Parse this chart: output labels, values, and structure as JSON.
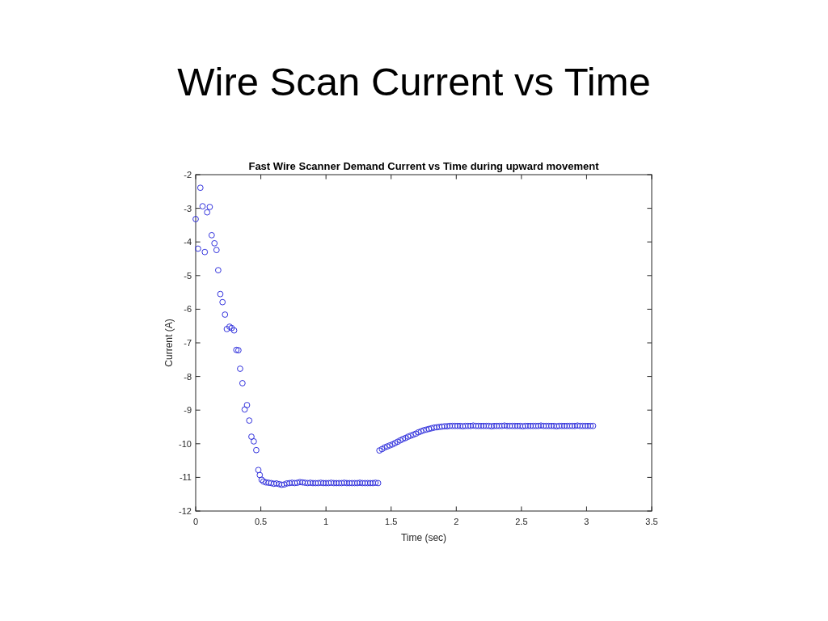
{
  "chart_data": {
    "type": "scatter",
    "title": "Wire Scan Current vs Time",
    "subtitle": "Fast Wire Scanner Demand Current vs Time during upward movement",
    "xlabel": "Time (sec)",
    "ylabel": "Current (A)",
    "xlim": [
      0,
      3.5
    ],
    "xticks": [
      0,
      0.5,
      1,
      1.5,
      2,
      2.5,
      3,
      3.5
    ],
    "ylim": [
      -12,
      -2
    ],
    "yticks": [
      -12,
      -11,
      -10,
      -9,
      -8,
      -7,
      -6,
      -5,
      -4,
      -3,
      -2
    ],
    "marker": "circle",
    "series": [
      {
        "color": "#3333dd",
        "x": [
          0,
          0.018,
          0.036,
          0.053,
          0.07,
          0.088,
          0.108,
          0.123,
          0.144,
          0.16,
          0.173,
          0.189,
          0.206,
          0.225,
          0.239,
          0.26,
          0.276,
          0.295,
          0.312,
          0.328,
          0.341,
          0.359,
          0.376,
          0.394,
          0.411,
          0.428,
          0.446,
          0.465,
          0.481,
          0.492,
          0.506,
          0.52,
          0.54,
          0.56,
          0.58,
          0.6,
          0.62,
          0.64,
          0.66,
          0.68,
          0.7,
          0.72,
          0.74,
          0.76,
          0.78,
          0.8,
          0.82,
          0.84,
          0.86,
          0.88,
          0.9,
          0.92,
          0.94,
          0.96,
          0.98,
          1,
          1.02,
          1.04,
          1.06,
          1.08,
          1.1,
          1.12,
          1.14,
          1.16,
          1.18,
          1.2,
          1.22,
          1.24,
          1.26,
          1.28,
          1.3,
          1.32,
          1.34,
          1.36,
          1.38,
          1.4,
          1.41,
          1.43,
          1.45,
          1.47,
          1.49,
          1.51,
          1.53,
          1.55,
          1.57,
          1.59,
          1.61,
          1.63,
          1.65,
          1.67,
          1.69,
          1.71,
          1.73,
          1.75,
          1.77,
          1.79,
          1.81,
          1.83,
          1.85,
          1.87,
          1.89,
          1.91,
          1.93,
          1.95,
          1.97,
          1.99,
          2.01,
          2.03,
          2.05,
          2.07,
          2.09,
          2.11,
          2.13,
          2.15,
          2.17,
          2.19,
          2.21,
          2.23,
          2.25,
          2.27,
          2.29,
          2.31,
          2.33,
          2.35,
          2.37,
          2.39,
          2.41,
          2.43,
          2.45,
          2.47,
          2.49,
          2.51,
          2.53,
          2.55,
          2.57,
          2.59,
          2.61,
          2.63,
          2.65,
          2.67,
          2.69,
          2.71,
          2.73,
          2.75,
          2.77,
          2.79,
          2.81,
          2.83,
          2.85,
          2.87,
          2.89,
          2.91,
          2.93,
          2.95,
          2.97,
          2.99,
          3.01,
          3.03,
          3.05
        ],
        "values": [
          -3.32,
          -4.2,
          -2.39,
          -2.94,
          -4.3,
          -3.12,
          -2.96,
          -3.8,
          -4.04,
          -4.24,
          -4.84,
          -5.55,
          -5.79,
          -6.16,
          -6.59,
          -6.52,
          -6.56,
          -6.63,
          -7.21,
          -7.22,
          -7.77,
          -8.2,
          -8.98,
          -8.85,
          -9.31,
          -9.79,
          -9.93,
          -10.19,
          -10.78,
          -10.93,
          -11.07,
          -11.12,
          -11.15,
          -11.16,
          -11.17,
          -11.19,
          -11.18,
          -11.2,
          -11.22,
          -11.21,
          -11.18,
          -11.17,
          -11.16,
          -11.17,
          -11.16,
          -11.14,
          -11.15,
          -11.16,
          -11.17,
          -11.16,
          -11.17,
          -11.17,
          -11.17,
          -11.16,
          -11.17,
          -11.17,
          -11.17,
          -11.16,
          -11.17,
          -11.17,
          -11.17,
          -11.17,
          -11.16,
          -11.17,
          -11.17,
          -11.17,
          -11.17,
          -11.17,
          -11.16,
          -11.17,
          -11.17,
          -11.17,
          -11.17,
          -11.17,
          -11.16,
          -11.17,
          -10.2,
          -10.16,
          -10.11,
          -10.08,
          -10.05,
          -10.02,
          -9.98,
          -9.94,
          -9.9,
          -9.86,
          -9.83,
          -9.79,
          -9.76,
          -9.73,
          -9.7,
          -9.66,
          -9.63,
          -9.6,
          -9.58,
          -9.56,
          -9.54,
          -9.52,
          -9.51,
          -9.5,
          -9.49,
          -9.48,
          -9.48,
          -9.47,
          -9.47,
          -9.47,
          -9.47,
          -9.47,
          -9.48,
          -9.47,
          -9.47,
          -9.47,
          -9.46,
          -9.47,
          -9.47,
          -9.47,
          -9.47,
          -9.47,
          -9.47,
          -9.48,
          -9.47,
          -9.47,
          -9.47,
          -9.47,
          -9.46,
          -9.47,
          -9.47,
          -9.47,
          -9.47,
          -9.47,
          -9.47,
          -9.48,
          -9.47,
          -9.47,
          -9.47,
          -9.47,
          -9.47,
          -9.47,
          -9.46,
          -9.47,
          -9.47,
          -9.47,
          -9.47,
          -9.47,
          -9.48,
          -9.47,
          -9.47,
          -9.47,
          -9.47,
          -9.47,
          -9.47,
          -9.47,
          -9.46,
          -9.47,
          -9.47,
          -9.47,
          -9.47,
          -9.47,
          -9.47
        ]
      }
    ]
  }
}
